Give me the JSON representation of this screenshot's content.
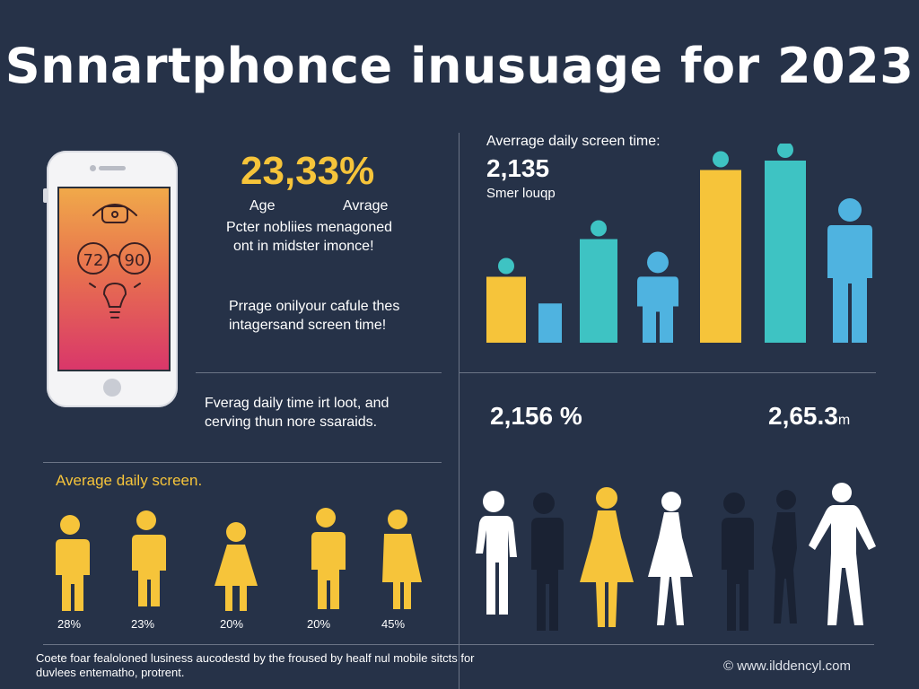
{
  "title": "Snnartphonce inusuage for 2023",
  "left_panel": {
    "big_value": "23,33%",
    "label_age": "Age",
    "label_avrage": "Avrage",
    "text1_line1": "Pcter nobliies menagoned",
    "text1_line2": "ont in midster imonce!",
    "text2_line1": "Prrage onilyour cafule thes",
    "text2_line2": "intagersand screen time!",
    "text3_line1": "Fverag daily time irt loot, and",
    "text3_line2": "cerving thun nore ssaraids.",
    "phone_numbers": [
      "72",
      "90"
    ]
  },
  "right_panel": {
    "heading": "Averrage daily screen time:",
    "value": "2,135",
    "sub": "Smer louqp",
    "stat_left": "2,156 %",
    "stat_right": "2,65.3",
    "stat_right_unit": "m"
  },
  "people_section": {
    "heading": "Average daily screen.",
    "percentages": [
      "28%",
      "23%",
      "20%",
      "20%",
      "45%"
    ]
  },
  "chart_data": {
    "type": "bar",
    "categories": [
      "",
      "",
      "",
      "",
      "",
      "",
      ""
    ],
    "values": [
      2.1,
      1.25,
      3.3,
      2.9,
      5.5,
      5.8,
      4.6
    ],
    "colors": [
      "#f6c43a",
      "#4fb3e0",
      "#3ec3c3",
      "#4fb3e0",
      "#f6c43a",
      "#3ec3c3",
      "#4fb3e0"
    ],
    "marks": [
      "bar",
      "bar",
      "bar",
      "person",
      "bar",
      "bar",
      "person"
    ],
    "ylim": [
      0,
      6
    ]
  },
  "footer": {
    "line1": "Coete foar fealoloned lusiness aucodestd by the froused by healf nul mobile sitcts for",
    "line2": "duvlees entematho, protrent.",
    "website": "www.ilddencyl.com"
  },
  "colors": {
    "background": "#263248",
    "yellow": "#f6c43a",
    "teal": "#3ec3c3",
    "blue": "#4fb3e0",
    "dark_silhouette": "#1a2233",
    "white": "#ffffff"
  }
}
